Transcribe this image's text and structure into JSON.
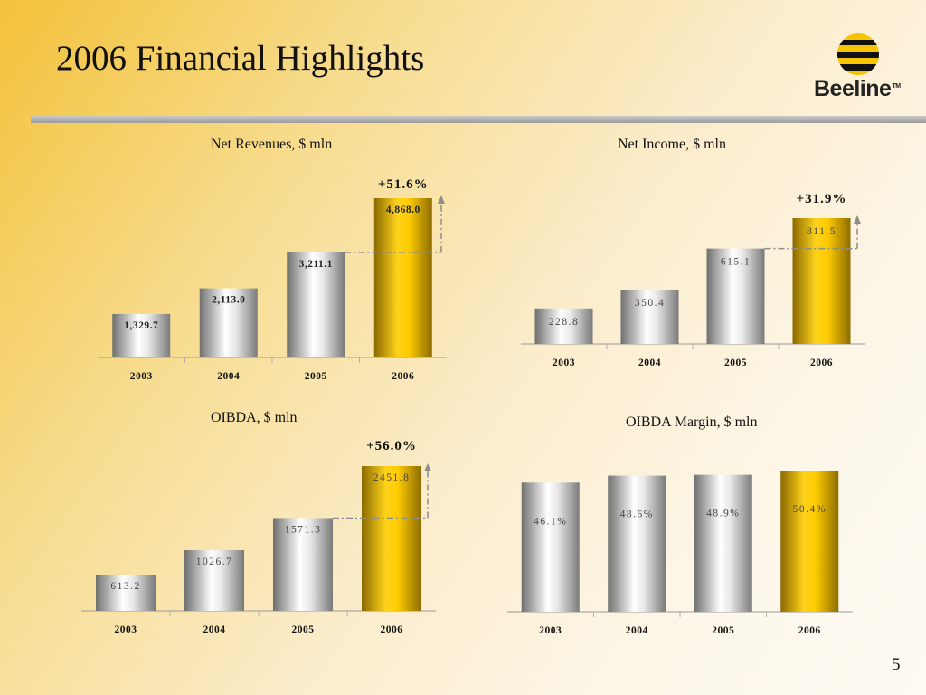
{
  "slide": {
    "title": "2006 Financial Highlights",
    "logo_text": "Beeline",
    "logo_tm": "TM",
    "page_number": "5"
  },
  "colors": {
    "bar_silver": "#c9c9c9",
    "bar_gold": "#e2ae00",
    "accent_arrow": "#8c8c8c"
  },
  "chart_data": [
    {
      "type": "bar",
      "title": "Net Revenues, $ mln",
      "categories": [
        "2003",
        "2004",
        "2005",
        "2006"
      ],
      "values": [
        1329.7,
        2113.0,
        3211.1,
        4868.0
      ],
      "value_labels": [
        "1,329.7",
        "2,113.0",
        "3,211.1",
        "4,868.0"
      ],
      "highlight_index": 3,
      "growth_label": "+51.6%",
      "ylim": [
        0,
        4868.0
      ]
    },
    {
      "type": "bar",
      "title": "Net Income, $ mln",
      "categories": [
        "2003",
        "2004",
        "2005",
        "2006"
      ],
      "values": [
        228.8,
        350.4,
        615.1,
        811.5
      ],
      "value_labels": [
        "228.8",
        "350.4",
        "615.1",
        "811.5"
      ],
      "highlight_index": 3,
      "growth_label": "+31.9%",
      "ylim": [
        0,
        811.5
      ]
    },
    {
      "type": "bar",
      "title": "OIBDA, $ mln",
      "categories": [
        "2003",
        "2004",
        "2005",
        "2006"
      ],
      "values": [
        613.2,
        1026.7,
        1571.3,
        2451.8
      ],
      "value_labels": [
        "613.2",
        "1026.7",
        "1571.3",
        "2451.8"
      ],
      "highlight_index": 3,
      "growth_label": "+56.0%",
      "ylim": [
        0,
        2451.8
      ]
    },
    {
      "type": "bar",
      "title": "OIBDA Margin, $ mln",
      "categories": [
        "2003",
        "2004",
        "2005",
        "2006"
      ],
      "values": [
        46.1,
        48.6,
        48.9,
        50.4
      ],
      "value_labels": [
        "46.1%",
        "48.6%",
        "48.9%",
        "50.4%"
      ],
      "highlight_index": 3,
      "growth_label": "",
      "ylim": [
        0,
        50.4
      ]
    }
  ]
}
